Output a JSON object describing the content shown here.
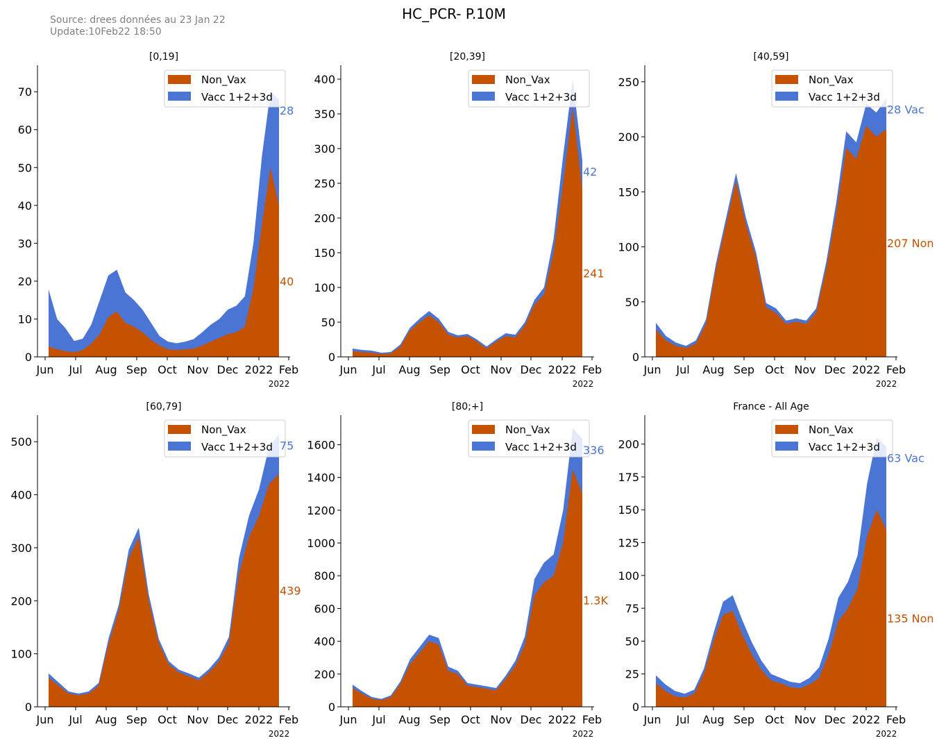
{
  "title": "HC_PCR- P.10M",
  "source_line1": "Source: drees données au 23 Jan 22",
  "source_line2": "Update:10Feb22 18:50",
  "colors": {
    "non_vax": "#C55200",
    "vacc": "#4A75D4"
  },
  "chart_data": [
    {
      "type": "area",
      "title": "[0,19]",
      "x_ticks": [
        "Jun",
        "Jul",
        "Aug",
        "Sep",
        "Oct",
        "Nov",
        "Dec",
        "2022",
        "Feb"
      ],
      "x_year": "2022",
      "ylim": [
        0,
        77
      ],
      "y_ticks": [
        0,
        10,
        20,
        30,
        40,
        50,
        60,
        70
      ],
      "legend": [
        "Non_Vax",
        "Vacc 1+2+3d"
      ],
      "legend_position": "top-right",
      "end_labels": {
        "vacc": "28",
        "non_vax": "40"
      },
      "series": [
        {
          "name": "Non_Vax",
          "values": [
            2.8,
            2.0,
            1.5,
            1.2,
            1.8,
            3.5,
            6.0,
            10.5,
            12.0,
            9.0,
            8.0,
            6.5,
            4.5,
            3.0,
            2.0,
            1.8,
            2.0,
            2.2,
            3.0,
            4.0,
            5.0,
            6.0,
            6.5,
            8.0,
            18.0,
            35.0,
            50.0,
            40.0
          ]
        },
        {
          "name": "Vacc 1+2+3d",
          "values": [
            15.0,
            8.0,
            6.0,
            3.0,
            3.0,
            5.0,
            9.0,
            11.0,
            11.0,
            8.0,
            7.0,
            6.0,
            4.5,
            2.5,
            2.0,
            1.8,
            2.0,
            2.5,
            3.5,
            4.5,
            5.0,
            6.5,
            7.0,
            8.0,
            12.0,
            18.0,
            20.0,
            28.0
          ]
        }
      ]
    },
    {
      "type": "area",
      "title": "[20,39]",
      "x_ticks": [
        "Jun",
        "Jul",
        "Aug",
        "Sep",
        "Oct",
        "Nov",
        "Dec",
        "2022",
        "Feb"
      ],
      "x_year": "2022",
      "ylim": [
        0,
        420
      ],
      "y_ticks": [
        0,
        50,
        100,
        150,
        200,
        250,
        300,
        350,
        400
      ],
      "legend": [
        "Non_Vax",
        "Vacc 1+2+3d"
      ],
      "legend_position": "top-right",
      "end_labels": {
        "vacc": "42",
        "non_vax": "241"
      },
      "series": [
        {
          "name": "Non_Vax",
          "values": [
            8,
            7,
            6,
            4,
            5,
            15,
            38,
            50,
            60,
            50,
            32,
            28,
            30,
            22,
            12,
            22,
            30,
            28,
            45,
            75,
            90,
            150,
            250,
            360,
            241
          ]
        },
        {
          "name": "Vacc 1+2+3d",
          "values": [
            4,
            3,
            3,
            2,
            2,
            3,
            4,
            5,
            6,
            5,
            4,
            3,
            3,
            3,
            3,
            3,
            4,
            4,
            5,
            7,
            10,
            20,
            40,
            40,
            42
          ]
        }
      ]
    },
    {
      "type": "area",
      "title": "[40,59]",
      "x_ticks": [
        "Jun",
        "Jul",
        "Aug",
        "Sep",
        "Oct",
        "Nov",
        "Dec",
        "2022",
        "Feb"
      ],
      "x_year": "2022",
      "ylim": [
        0,
        265
      ],
      "y_ticks": [
        0,
        50,
        100,
        150,
        200,
        250
      ],
      "legend": [
        "Non_Vax",
        "Vacc 1+2+3d"
      ],
      "legend_position": "top-right",
      "end_labels": {
        "vacc": "28 Vac",
        "non_vax": "207 Non"
      },
      "series": [
        {
          "name": "Non_Vax",
          "values": [
            25,
            15,
            10,
            8,
            12,
            30,
            80,
            120,
            160,
            120,
            90,
            45,
            40,
            30,
            32,
            30,
            40,
            80,
            130,
            190,
            180,
            210,
            200,
            207
          ]
        },
        {
          "name": "Vacc 1+2+3d",
          "values": [
            6,
            4,
            3,
            2,
            3,
            4,
            5,
            6,
            7,
            6,
            5,
            4,
            4,
            3,
            3,
            3,
            4,
            6,
            10,
            15,
            15,
            20,
            22,
            28
          ]
        }
      ]
    },
    {
      "type": "area",
      "title": "[60,79]",
      "x_ticks": [
        "Jun",
        "Jul",
        "Aug",
        "Sep",
        "Oct",
        "Nov",
        "Dec",
        "2022",
        "Feb"
      ],
      "x_year": "2022",
      "ylim": [
        0,
        550
      ],
      "y_ticks": [
        0,
        100,
        200,
        300,
        400,
        500
      ],
      "legend": [
        "Non_Vax",
        "Vacc 1+2+3d"
      ],
      "legend_position": "top-right",
      "end_labels": {
        "vacc": "75",
        "non_vax": "439"
      },
      "series": [
        {
          "name": "Non_Vax",
          "values": [
            55,
            40,
            25,
            22,
            25,
            40,
            120,
            180,
            280,
            320,
            200,
            120,
            80,
            65,
            58,
            50,
            65,
            85,
            120,
            250,
            320,
            360,
            420,
            439
          ]
        },
        {
          "name": "Vacc 1+2+3d",
          "values": [
            8,
            6,
            4,
            3,
            4,
            5,
            10,
            12,
            16,
            18,
            12,
            8,
            6,
            5,
            5,
            5,
            6,
            8,
            12,
            30,
            40,
            50,
            70,
            75
          ]
        }
      ]
    },
    {
      "type": "area",
      "title": "[80;+]",
      "x_ticks": [
        "Jun",
        "Jul",
        "Aug",
        "Sep",
        "Oct",
        "Nov",
        "Dec",
        "2022",
        "Feb"
      ],
      "x_year": "2022",
      "ylim": [
        0,
        1780
      ],
      "y_ticks": [
        0,
        200,
        400,
        600,
        800,
        1000,
        1200,
        1400,
        1600
      ],
      "legend": [
        "Non_Vax",
        "Vacc 1+2+3d"
      ],
      "legend_position": "top-right",
      "end_labels": {
        "vacc": "336",
        "non_vax": "1.3K"
      },
      "series": [
        {
          "name": "Non_Vax",
          "values": [
            115,
            80,
            50,
            40,
            60,
            140,
            260,
            330,
            400,
            380,
            220,
            200,
            130,
            120,
            110,
            100,
            170,
            250,
            380,
            680,
            760,
            800,
            1000,
            1450,
            1300
          ]
        },
        {
          "name": "Vacc 1+2+3d",
          "values": [
            20,
            15,
            10,
            8,
            10,
            15,
            30,
            35,
            40,
            40,
            25,
            20,
            15,
            15,
            15,
            15,
            20,
            30,
            50,
            100,
            120,
            130,
            200,
            250,
            336
          ]
        }
      ]
    },
    {
      "type": "area",
      "title": "France - All Age",
      "x_ticks": [
        "Jun",
        "Jul",
        "Aug",
        "Sep",
        "Oct",
        "Nov",
        "Dec",
        "2022",
        "Feb"
      ],
      "x_year": "2022",
      "ylim": [
        0,
        222
      ],
      "y_ticks": [
        0,
        25,
        50,
        75,
        100,
        125,
        150,
        175,
        200
      ],
      "legend": [
        "Non_Vax",
        "Vacc 1+2+3d"
      ],
      "legend_position": "top-right",
      "end_labels": {
        "vacc": "63 Vac",
        "non_vax": "135 Non"
      },
      "series": [
        {
          "name": "Non_Vax",
          "values": [
            18,
            12,
            8,
            7,
            10,
            25,
            50,
            70,
            73,
            55,
            40,
            28,
            20,
            18,
            15,
            14,
            17,
            22,
            40,
            65,
            75,
            90,
            130,
            150,
            135
          ]
        },
        {
          "name": "Vacc 1+2+3d",
          "values": [
            6,
            5,
            4,
            3,
            3,
            4,
            6,
            10,
            12,
            11,
            9,
            7,
            5,
            4,
            4,
            4,
            5,
            8,
            12,
            18,
            20,
            25,
            40,
            55,
            63
          ]
        }
      ]
    }
  ]
}
